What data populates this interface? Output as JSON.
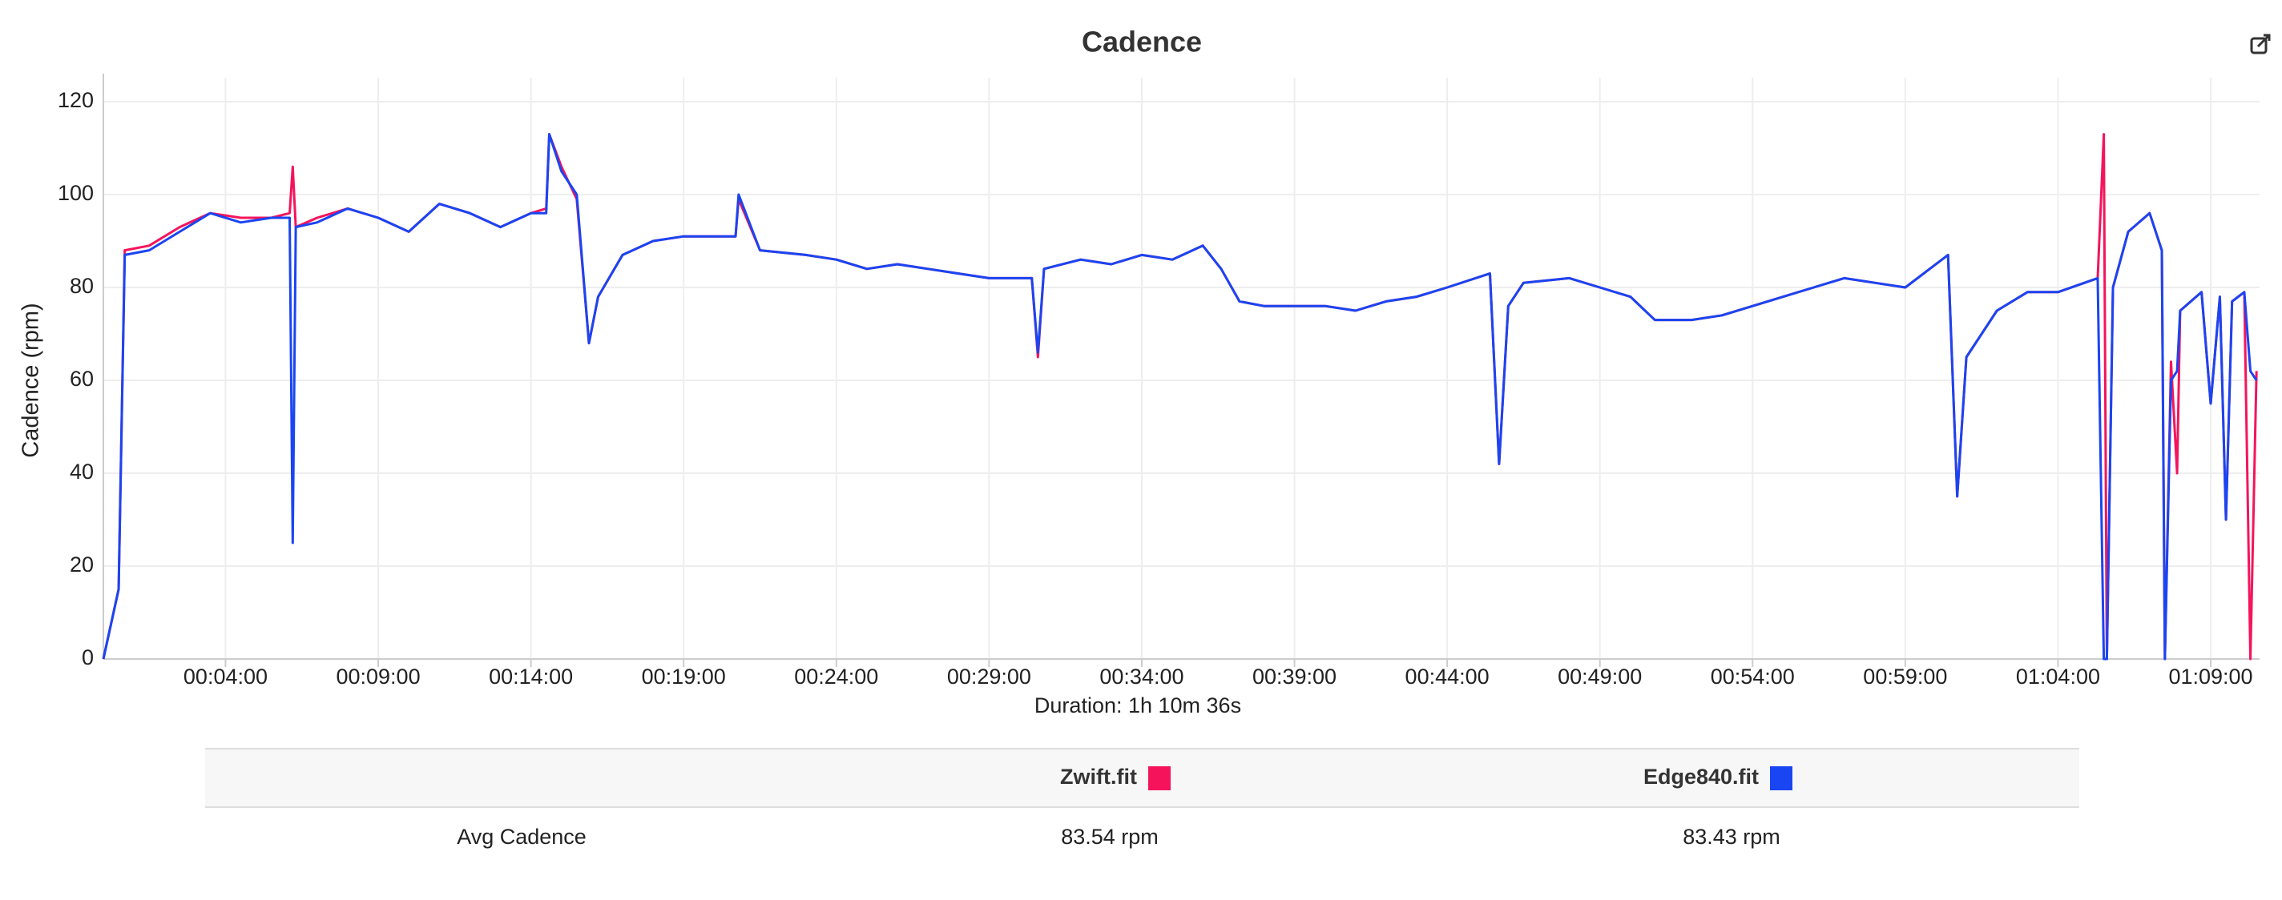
{
  "chart_data": {
    "type": "line",
    "title": "Cadence",
    "ylabel": "Cadence (rpm)",
    "xlabel": "Duration: 1h 10m 36s",
    "x": [
      0,
      30,
      42,
      90,
      150,
      210,
      270,
      330,
      366,
      372,
      378,
      420,
      480,
      540,
      600,
      660,
      720,
      780,
      840,
      870,
      876,
      900,
      930,
      954,
      972,
      1020,
      1080,
      1140,
      1200,
      1242,
      1248,
      1290,
      1380,
      1440,
      1500,
      1560,
      1620,
      1680,
      1740,
      1824,
      1836,
      1848,
      1920,
      1980,
      2040,
      2100,
      2160,
      2196,
      2232,
      2280,
      2400,
      2460,
      2520,
      2580,
      2640,
      2724,
      2742,
      2760,
      2790,
      2880,
      2940,
      3000,
      3048,
      3120,
      3180,
      3240,
      3300,
      3360,
      3420,
      3480,
      3540,
      3624,
      3642,
      3660,
      3720,
      3780,
      3840,
      3918,
      3930,
      3936,
      3948,
      3978,
      4020,
      4044,
      4050,
      4062,
      4074,
      4080,
      4122,
      4140,
      4158,
      4170,
      4182,
      4206,
      4218,
      4230
    ],
    "series": [
      {
        "name": "Zwift.fit",
        "color": "#f5145c",
        "values": [
          0,
          15,
          88,
          89,
          93,
          96,
          95,
          95,
          96,
          106,
          93,
          95,
          97,
          95,
          92,
          98,
          96,
          93,
          96,
          97,
          113,
          106,
          99,
          68,
          78,
          87,
          90,
          91,
          91,
          91,
          99,
          88,
          87,
          86,
          84,
          85,
          84,
          83,
          82,
          82,
          65,
          84,
          86,
          85,
          87,
          86,
          89,
          84,
          77,
          76,
          76,
          75,
          77,
          78,
          80,
          83,
          42,
          76,
          81,
          82,
          80,
          78,
          73,
          73,
          74,
          76,
          78,
          80,
          82,
          81,
          80,
          87,
          35,
          65,
          75,
          79,
          79,
          82,
          113,
          0,
          80,
          92,
          96,
          88,
          0,
          64,
          40,
          75,
          79,
          55,
          78,
          30,
          77,
          79,
          0,
          62
        ]
      },
      {
        "name": "Edge840.fit",
        "color": "#1a45f2",
        "values": [
          0,
          15,
          87,
          88,
          92,
          96,
          94,
          95,
          95,
          25,
          93,
          94,
          97,
          95,
          92,
          98,
          96,
          93,
          96,
          96,
          113,
          105,
          100,
          68,
          78,
          87,
          90,
          91,
          91,
          91,
          100,
          88,
          87,
          86,
          84,
          85,
          84,
          83,
          82,
          82,
          66,
          84,
          86,
          85,
          87,
          86,
          89,
          84,
          77,
          76,
          76,
          75,
          77,
          78,
          80,
          83,
          42,
          76,
          81,
          82,
          80,
          78,
          73,
          73,
          74,
          76,
          78,
          80,
          82,
          81,
          80,
          87,
          35,
          65,
          75,
          79,
          79,
          82,
          0,
          0,
          80,
          92,
          96,
          88,
          0,
          60,
          62,
          75,
          79,
          55,
          78,
          30,
          77,
          79,
          62,
          60
        ]
      }
    ],
    "xlim": [
      0,
      4236
    ],
    "xticks": [
      {
        "value": 240,
        "label": "00:04:00"
      },
      {
        "value": 540,
        "label": "00:09:00"
      },
      {
        "value": 840,
        "label": "00:14:00"
      },
      {
        "value": 1140,
        "label": "00:19:00"
      },
      {
        "value": 1440,
        "label": "00:24:00"
      },
      {
        "value": 1740,
        "label": "00:29:00"
      },
      {
        "value": 2040,
        "label": "00:34:00"
      },
      {
        "value": 2340,
        "label": "00:39:00"
      },
      {
        "value": 2640,
        "label": "00:44:00"
      },
      {
        "value": 2940,
        "label": "00:49:00"
      },
      {
        "value": 3240,
        "label": "00:54:00"
      },
      {
        "value": 3540,
        "label": "00:59:00"
      },
      {
        "value": 3840,
        "label": "01:04:00"
      },
      {
        "value": 4140,
        "label": "01:09:00"
      }
    ],
    "ylim": [
      0,
      120
    ],
    "yticks": [
      0,
      20,
      40,
      60,
      80,
      100,
      120
    ],
    "grid": true
  },
  "table": {
    "rows": [
      [
        "Avg Cadence",
        "83.54 rpm",
        "83.43 rpm"
      ]
    ]
  }
}
